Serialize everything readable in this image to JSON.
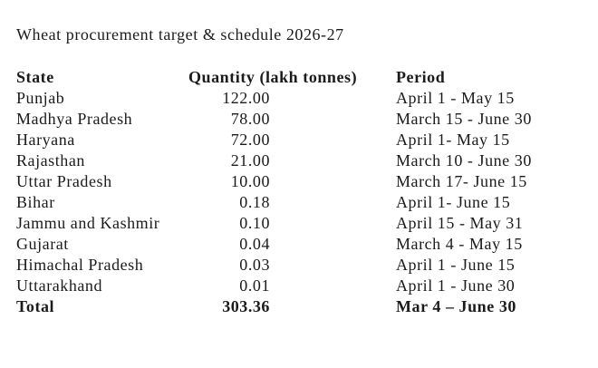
{
  "page": {
    "background_color": "#ffffff",
    "text_color": "#1b1b1b"
  },
  "document": {
    "title": "Wheat procurement target & schedule 2026-27"
  },
  "table": {
    "columns": [
      "State",
      "Quantity (lakh tonnes)",
      "Period"
    ],
    "rows": [
      {
        "state": "Punjab",
        "quantity": "122.00",
        "period": "April 1 - May 15"
      },
      {
        "state": "Madhya Pradesh",
        "quantity": "78.00",
        "period": "March 15 - June 30"
      },
      {
        "state": "Haryana",
        "quantity": "72.00",
        "period": "April 1- May 15"
      },
      {
        "state": "Rajasthan",
        "quantity": "21.00",
        "period": "March 10 - June 30"
      },
      {
        "state": "Uttar Pradesh",
        "quantity": "10.00",
        "period": "March 17- June 15"
      },
      {
        "state": "Bihar",
        "quantity": "0.18",
        "period": "April 1- June 15"
      },
      {
        "state": "Jammu and Kashmir",
        "quantity": "0.10",
        "period": "April 15 - May 31"
      },
      {
        "state": "Gujarat",
        "quantity": "0.04",
        "period": "March 4 - May 15"
      },
      {
        "state": "Himachal Pradesh",
        "quantity": "0.03",
        "period": "April 1 - June 15"
      },
      {
        "state": "Uttarakhand",
        "quantity": "0.01",
        "period": "April 1 - June 30"
      },
      {
        "state": "Total",
        "quantity": "303.36",
        "period": "Mar 4 – June 30",
        "bold": true
      }
    ]
  }
}
